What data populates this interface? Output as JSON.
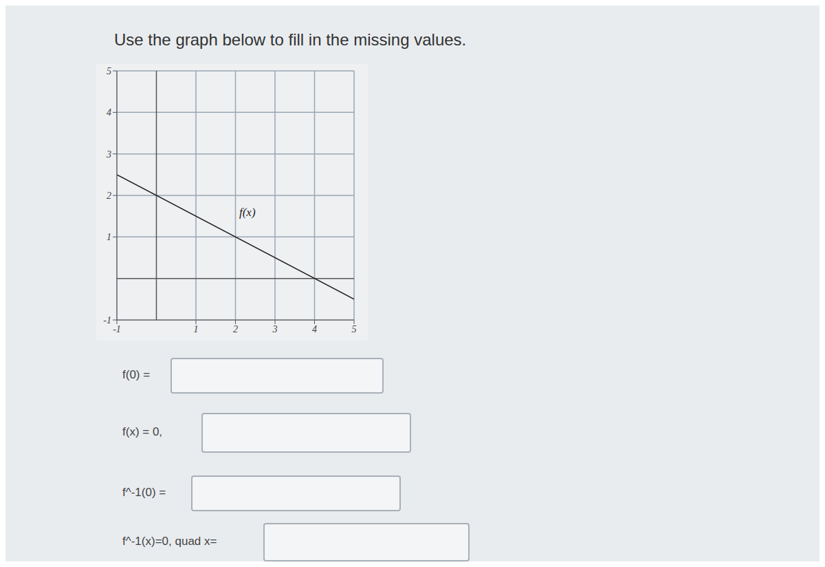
{
  "heading": "Use the graph below to fill in the missing values.",
  "chart_data": {
    "type": "line",
    "x": [
      -1,
      5
    ],
    "values": [
      2.5,
      -0.5
    ],
    "color": "#222222",
    "xlim": [
      -1,
      5
    ],
    "ylim": [
      -1,
      5
    ],
    "xticks": [
      -1,
      1,
      2,
      3,
      4,
      5
    ],
    "yticks": [
      -1,
      1,
      2,
      3,
      4,
      5
    ],
    "grid": true,
    "annotations": [
      {
        "text": "f(x)",
        "x": 2.3,
        "y": 1.6
      }
    ]
  },
  "form": {
    "fields": [
      "f(0) =",
      "f(x) = 0,",
      "f^-1(0) =",
      "f^-1(x)=0, quad x="
    ]
  }
}
